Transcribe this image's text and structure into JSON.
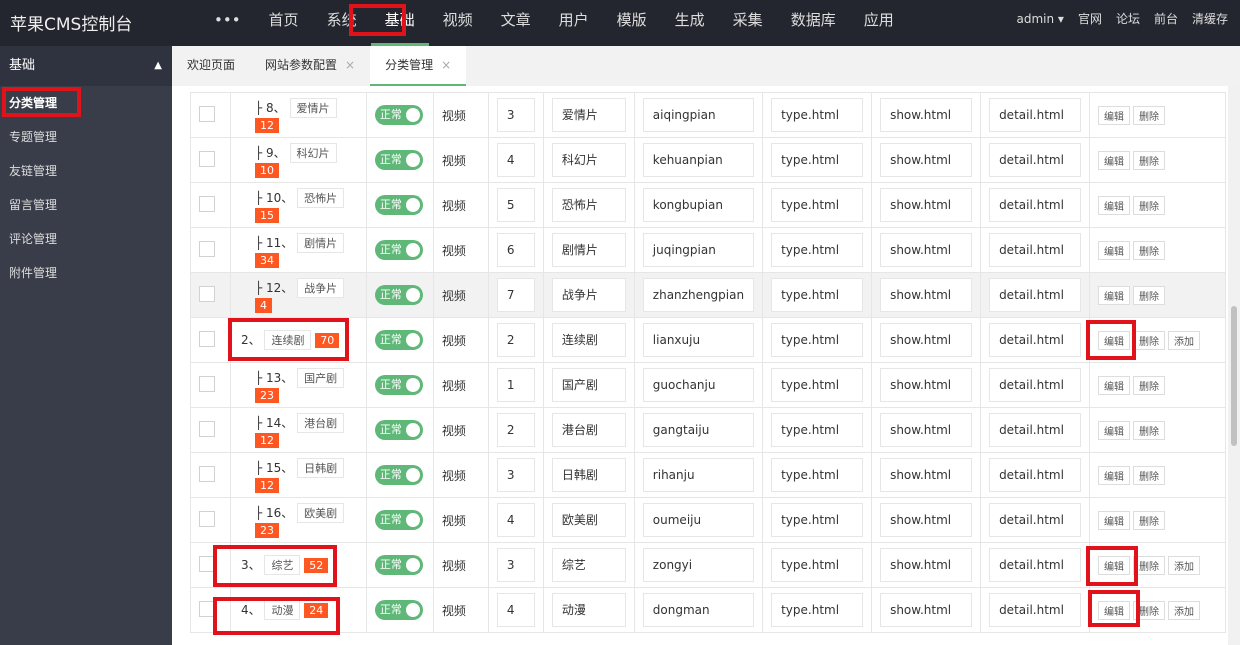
{
  "app_title": "苹果CMS控制台",
  "nav": {
    "more": "•••",
    "items": [
      "首页",
      "系统",
      "基础",
      "视频",
      "文章",
      "用户",
      "模版",
      "生成",
      "采集",
      "数据库",
      "应用"
    ],
    "active": 2
  },
  "user": {
    "name": "admin ▾",
    "links": [
      "官网",
      "论坛",
      "前台",
      "清缓存"
    ]
  },
  "sidebar": {
    "group": "基础",
    "items": [
      "分类管理",
      "专题管理",
      "友链管理",
      "留言管理",
      "评论管理",
      "附件管理"
    ],
    "active": 0
  },
  "tabs": [
    {
      "label": "欢迎页面",
      "close": ""
    },
    {
      "label": "网站参数配置",
      "close": "×"
    },
    {
      "label": "分类管理",
      "close": "×"
    }
  ],
  "status_label": "正常",
  "buttons": {
    "edit": "编辑",
    "delete": "删除",
    "add": "添加"
  },
  "accent": "#5fb878",
  "badge_color": "#ff5722",
  "rows": [
    {
      "prefix": "├ 8、",
      "name": "爱情片",
      "count": "12",
      "type": "视频",
      "sort": "3",
      "en": "aiqingpian",
      "tpl": "type.html",
      "show": "show.html",
      "detail": "detail.html",
      "add": false
    },
    {
      "prefix": "├ 9、",
      "name": "科幻片",
      "count": "10",
      "type": "视频",
      "sort": "4",
      "en": "kehuanpian",
      "tpl": "type.html",
      "show": "show.html",
      "detail": "detail.html",
      "add": false
    },
    {
      "prefix": "├ 10、",
      "name": "恐怖片",
      "count": "15",
      "type": "视频",
      "sort": "5",
      "en": "kongbupian",
      "tpl": "type.html",
      "show": "show.html",
      "detail": "detail.html",
      "add": false
    },
    {
      "prefix": "├ 11、",
      "name": "剧情片",
      "count": "34",
      "type": "视频",
      "sort": "6",
      "en": "juqingpian",
      "tpl": "type.html",
      "show": "show.html",
      "detail": "detail.html",
      "add": false
    },
    {
      "prefix": "├ 12、",
      "name": "战争片",
      "count": "4",
      "type": "视频",
      "sort": "7",
      "en": "zhanzhengpian",
      "tpl": "type.html",
      "show": "show.html",
      "detail": "detail.html",
      "add": false
    },
    {
      "prefix": "2、",
      "name": "连续剧",
      "count": "70",
      "type": "视频",
      "sort": "2",
      "en": "lianxuju",
      "tpl": "type.html",
      "show": "show.html",
      "detail": "detail.html",
      "add": true
    },
    {
      "prefix": "├ 13、",
      "name": "国产剧",
      "count": "23",
      "type": "视频",
      "sort": "1",
      "en": "guochanju",
      "tpl": "type.html",
      "show": "show.html",
      "detail": "detail.html",
      "add": false
    },
    {
      "prefix": "├ 14、",
      "name": "港台剧",
      "count": "12",
      "type": "视频",
      "sort": "2",
      "en": "gangtaiju",
      "tpl": "type.html",
      "show": "show.html",
      "detail": "detail.html",
      "add": false
    },
    {
      "prefix": "├ 15、",
      "name": "日韩剧",
      "count": "12",
      "type": "视频",
      "sort": "3",
      "en": "rihanju",
      "tpl": "type.html",
      "show": "show.html",
      "detail": "detail.html",
      "add": false
    },
    {
      "prefix": "├ 16、",
      "name": "欧美剧",
      "count": "23",
      "type": "视频",
      "sort": "4",
      "en": "oumeiju",
      "tpl": "type.html",
      "show": "show.html",
      "detail": "detail.html",
      "add": false
    },
    {
      "prefix": "3、",
      "name": "综艺",
      "count": "52",
      "type": "视频",
      "sort": "3",
      "en": "zongyi",
      "tpl": "type.html",
      "show": "show.html",
      "detail": "detail.html",
      "add": true
    },
    {
      "prefix": "4、",
      "name": "动漫",
      "count": "24",
      "type": "视频",
      "sort": "4",
      "en": "dongman",
      "tpl": "type.html",
      "show": "show.html",
      "detail": "detail.html",
      "add": true
    }
  ]
}
